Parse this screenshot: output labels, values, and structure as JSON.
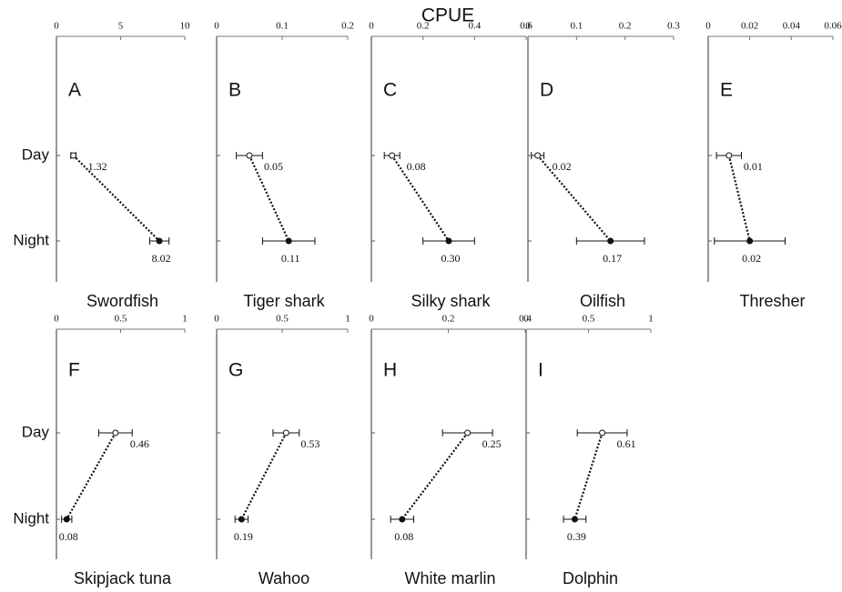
{
  "title": "CPUE",
  "chart_data": [
    {
      "type": "dot",
      "panel": "A",
      "name": "Swordfish",
      "categories": [
        "Day",
        "Night"
      ],
      "values": [
        1.32,
        8.02
      ],
      "errors": [
        0.2,
        0.75
      ],
      "xlim": [
        0,
        10
      ],
      "xticks": [
        0,
        5,
        10
      ]
    },
    {
      "type": "dot",
      "panel": "B",
      "name": "Tiger shark",
      "categories": [
        "Day",
        "Night"
      ],
      "values": [
        0.05,
        0.11
      ],
      "errors": [
        0.02,
        0.04
      ],
      "xlim": [
        0,
        0.2
      ],
      "xticks": [
        0,
        0.1,
        0.2
      ]
    },
    {
      "type": "dot",
      "panel": "C",
      "name": "Silky shark",
      "categories": [
        "Day",
        "Night"
      ],
      "values": [
        0.08,
        0.3
      ],
      "value_labels": [
        "0.08",
        "0.30"
      ],
      "errors": [
        0.03,
        0.1
      ],
      "xlim": [
        0,
        0.6
      ],
      "xticks": [
        0,
        0.2,
        0.4,
        0.6
      ]
    },
    {
      "type": "dot",
      "panel": "D",
      "name": "Oilfish",
      "categories": [
        "Day",
        "Night"
      ],
      "values": [
        0.02,
        0.17
      ],
      "errors": [
        0.013,
        0.07
      ],
      "xlim": [
        0,
        0.3
      ],
      "xticks": [
        0,
        0.1,
        0.2,
        0.3
      ]
    },
    {
      "type": "dot",
      "panel": "E",
      "name": "Thresher",
      "categories": [
        "Day",
        "Night"
      ],
      "values": [
        0.01,
        0.02
      ],
      "errors": [
        0.006,
        0.017
      ],
      "xlim": [
        0,
        0.06
      ],
      "xticks": [
        0,
        0.02,
        0.04,
        0.06
      ]
    },
    {
      "type": "dot",
      "panel": "F",
      "name": "Skipjack tuna",
      "categories": [
        "Day",
        "Night"
      ],
      "values": [
        0.46,
        0.08
      ],
      "errors": [
        0.13,
        0.04
      ],
      "xlim": [
        0,
        1
      ],
      "xticks": [
        0,
        0.5,
        1
      ]
    },
    {
      "type": "dot",
      "panel": "G",
      "name": "Wahoo",
      "categories": [
        "Day",
        "Night"
      ],
      "values": [
        0.53,
        0.19
      ],
      "errors": [
        0.1,
        0.05
      ],
      "xlim": [
        0,
        1
      ],
      "xticks": [
        0,
        0.5,
        1
      ]
    },
    {
      "type": "dot",
      "panel": "H",
      "name": "White marlin",
      "categories": [
        "Day",
        "Night"
      ],
      "values": [
        0.25,
        0.08
      ],
      "errors": [
        0.065,
        0.03
      ],
      "xlim": [
        0,
        0.4
      ],
      "xticks": [
        0,
        0.2,
        0.4
      ]
    },
    {
      "type": "dot",
      "panel": "I",
      "name": "Dolphin",
      "categories": [
        "Day",
        "Night"
      ],
      "values": [
        0.61,
        0.39
      ],
      "errors": [
        0.2,
        0.09
      ],
      "xlim": [
        0,
        1
      ],
      "xticks": [
        0,
        0.5,
        1
      ]
    }
  ]
}
